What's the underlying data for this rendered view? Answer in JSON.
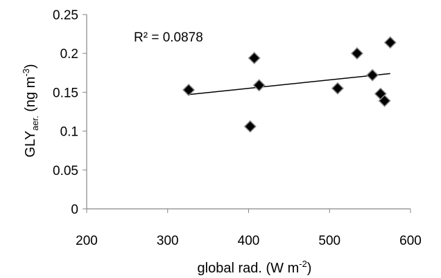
{
  "chart_data": {
    "type": "scatter",
    "title": "",
    "xlabel": {
      "main": "global rad. (W m",
      "sup": "-2",
      "close": ")"
    },
    "ylabel": {
      "main": "GLY",
      "sub": "aer.",
      "mid": " (ng m",
      "sup": "-3",
      "close": ")"
    },
    "xlim": [
      200,
      600
    ],
    "ylim": [
      0,
      0.25
    ],
    "xticks": [
      200,
      300,
      400,
      500,
      600
    ],
    "yticks": [
      0,
      0.05,
      0.1,
      0.15,
      0.2,
      0.25
    ],
    "xtick_labels": [
      "200",
      "300",
      "400",
      "500",
      "600"
    ],
    "ytick_labels": [
      "0",
      "0.05",
      "0.1",
      "0.15",
      "0.2",
      "0.25"
    ],
    "grid": false,
    "legend": "none",
    "marker": "diamond",
    "marker_color": "#000000",
    "trendline": {
      "type": "linear",
      "x_range": [
        326,
        575
      ],
      "y_range": [
        0.147,
        0.174
      ],
      "r2_label": "R² = 0.0878"
    },
    "points": [
      {
        "x": 326,
        "y": 0.153
      },
      {
        "x": 402,
        "y": 0.106
      },
      {
        "x": 407,
        "y": 0.194
      },
      {
        "x": 413,
        "y": 0.159
      },
      {
        "x": 510,
        "y": 0.155
      },
      {
        "x": 534,
        "y": 0.2
      },
      {
        "x": 553,
        "y": 0.172
      },
      {
        "x": 563,
        "y": 0.148
      },
      {
        "x": 568,
        "y": 0.139
      },
      {
        "x": 575,
        "y": 0.214
      }
    ]
  }
}
